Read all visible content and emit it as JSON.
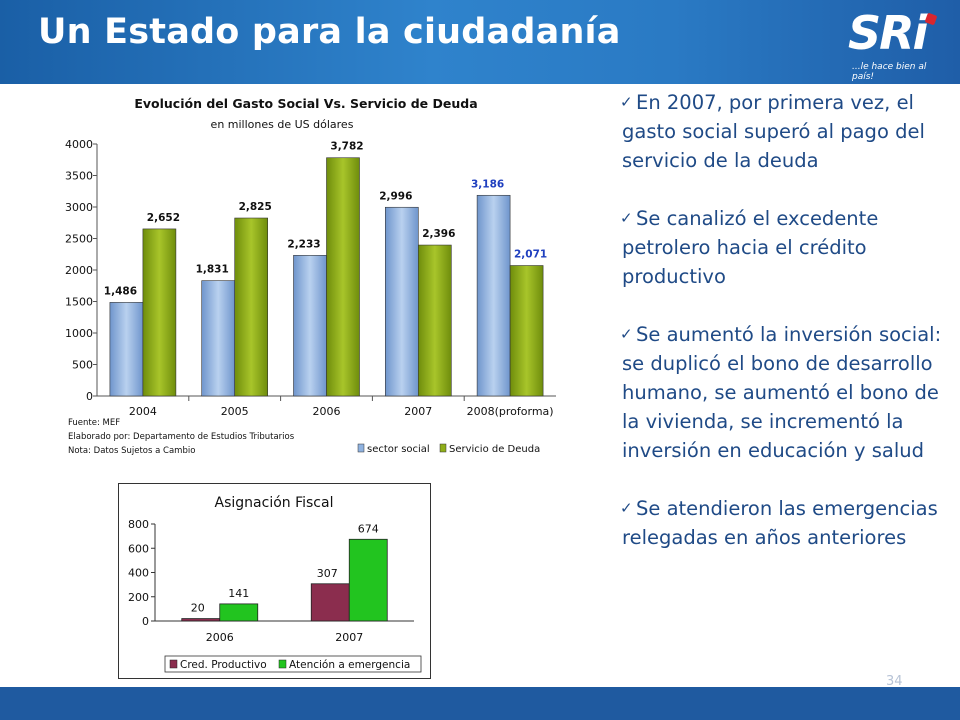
{
  "slide": {
    "title": "Un Estado para la ciudadanía",
    "logo_text": "SRi",
    "logo_tagline": "...le hace bien al país!",
    "page_number": "34",
    "colors": {
      "header_blue": "#2a7ac4",
      "footer_blue": "#1f5aa0",
      "bullet_text": "#1f4a86"
    }
  },
  "bullets": [
    "En 2007, por primera vez, el gasto social superó al pago del servicio de la deuda",
    "Se canalizó el excedente petrolero hacia el crédito productivo",
    "Se aumentó la inversión social: se duplicó el bono de desarrollo humano, se aumentó el bono de la vivienda, se incrementó la inversión en educación y salud",
    "Se atendieron las emergencias relegadas en años anteriores"
  ],
  "chart_data": [
    {
      "type": "bar",
      "title": "Evolución del Gasto Social Vs. Servicio de Deuda",
      "subtitle": "en millones de US dólares",
      "categories": [
        "2004",
        "2005",
        "2006",
        "2007",
        "2008(proforma)"
      ],
      "series": [
        {
          "name": "sector social",
          "values": [
            1486,
            1831,
            2233,
            2996,
            3186
          ],
          "labels": [
            "1,486",
            "1,831",
            "2,233",
            "2,996",
            "3,186"
          ],
          "color": "#8fb2e0"
        },
        {
          "name": "Servicio de Deuda",
          "values": [
            2652,
            2825,
            3782,
            2396,
            2071
          ],
          "labels": [
            "2,652",
            "2,825",
            "3,782",
            "2,396",
            "2,071"
          ],
          "color": "#8fae19"
        }
      ],
      "yticks": [
        "0",
        "500",
        "1000",
        "1500",
        "2000",
        "2500",
        "3000",
        "3500",
        "4000"
      ],
      "ylim": [
        0,
        4000
      ],
      "legend_position": "bottom-right",
      "notes": [
        "Fuente: MEF",
        "Elaborado por: Departamento de Estudios Tributarios",
        "Nota: Datos Sujetos a Cambio"
      ]
    },
    {
      "type": "bar",
      "title": "Asignación Fiscal",
      "categories": [
        "2006",
        "2007"
      ],
      "series": [
        {
          "name": "Cred. Productivo",
          "values": [
            20,
            307
          ],
          "labels": [
            "20",
            "307"
          ],
          "color": "#8b2d4e"
        },
        {
          "name": "Atención a emergencia",
          "values": [
            141,
            674
          ],
          "labels": [
            "141",
            "674"
          ],
          "color": "#22c41f"
        }
      ],
      "yticks": [
        "0",
        "200",
        "400",
        "600",
        "800"
      ],
      "ylim": [
        0,
        800
      ],
      "legend_position": "bottom",
      "grid": false
    }
  ]
}
